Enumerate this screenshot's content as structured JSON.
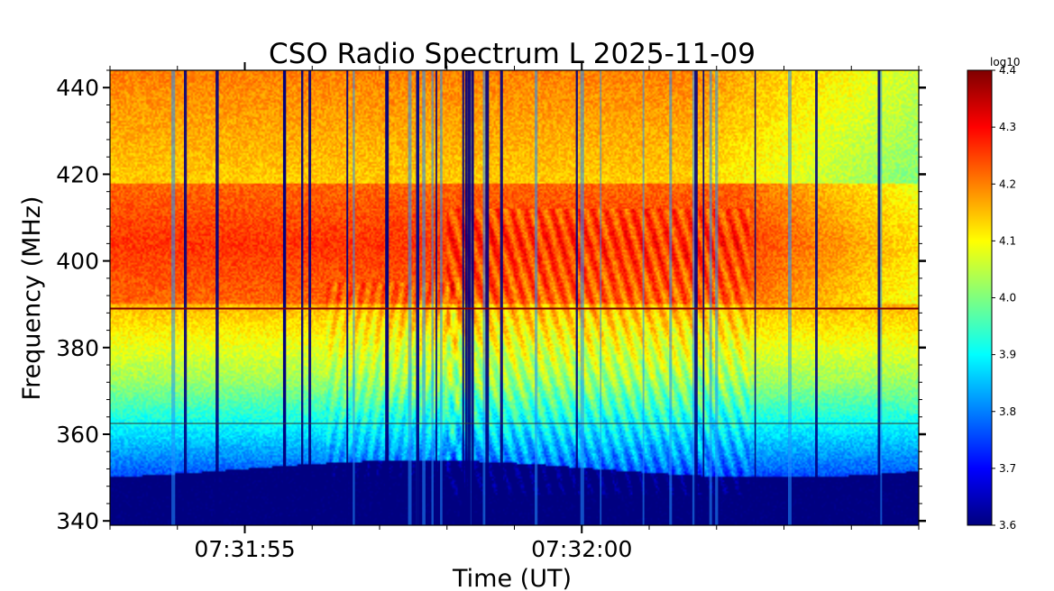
{
  "chart_data": {
    "type": "heatmap",
    "title": "CSO Radio Spectrum L 2025-11-09",
    "xlabel": "Time (UT)",
    "ylabel": "Frequency (MHz)",
    "xlim_seconds_after_073155": [
      -2,
      10
    ],
    "ylim": [
      339,
      444
    ],
    "x_ticks": [
      {
        "t": 0,
        "label": "07:31:55"
      },
      {
        "t": 5,
        "label": "07:32:00"
      }
    ],
    "y_ticks": [
      340,
      360,
      380,
      400,
      420,
      440
    ],
    "colorbar": {
      "label": "log10",
      "range": [
        3.6,
        4.4
      ],
      "ticks": [
        3.6,
        3.7,
        3.8,
        3.9,
        4.0,
        4.1,
        4.2,
        4.3,
        4.4
      ],
      "colormap": "jet"
    },
    "features": {
      "intense_band_MHz": [
        390,
        418
      ],
      "horizontal_lines_MHz": [
        389,
        362.5
      ],
      "low_floor_below_MHz": 348,
      "type_iii_like_drifting_stripes_window_seconds": [
        3,
        7.5
      ]
    }
  },
  "colors": {
    "jet_stops": [
      "#00007f",
      "#0000ff",
      "#007fff",
      "#00ffff",
      "#7fff7f",
      "#ffff00",
      "#ff7f00",
      "#ff0000",
      "#7f0000"
    ]
  }
}
